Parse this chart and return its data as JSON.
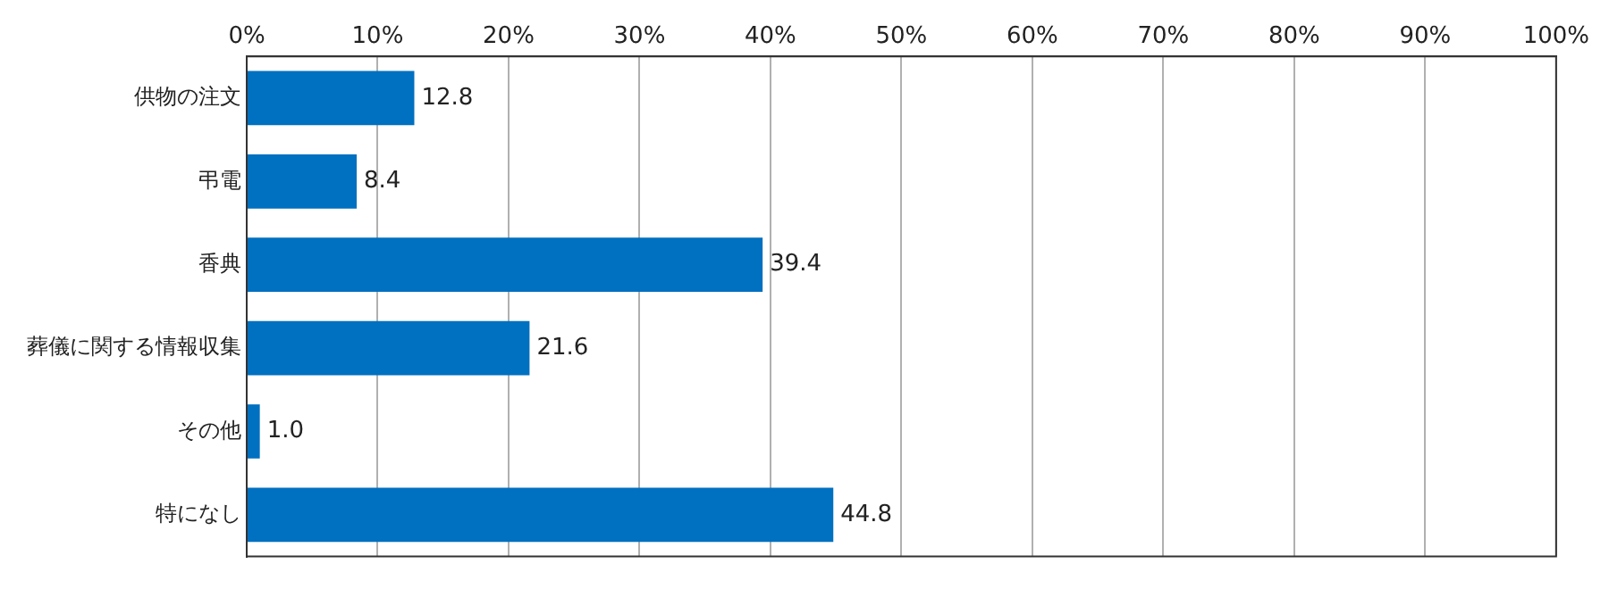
{
  "chart_data": {
    "type": "bar",
    "orientation": "horizontal",
    "categories": [
      "供物の注文",
      "弔電",
      "香典",
      "葬儀に関する情報収集",
      "その他",
      "特になし"
    ],
    "values": [
      12.8,
      8.4,
      39.4,
      21.6,
      1.0,
      44.8
    ],
    "value_labels": [
      "12.8",
      "8.4",
      "39.4",
      "21.6",
      "1.0",
      "44.8"
    ],
    "color": "#0070c0",
    "xlim": [
      0,
      100
    ],
    "xticks": [
      {
        "value": 0,
        "label": "0%"
      },
      {
        "value": 10,
        "label": "10%"
      },
      {
        "value": 20,
        "label": "20%"
      },
      {
        "value": 30,
        "label": "30%"
      },
      {
        "value": 40,
        "label": "40%"
      },
      {
        "value": 50,
        "label": "50%"
      },
      {
        "value": 60,
        "label": "60%"
      },
      {
        "value": 70,
        "label": "70%"
      },
      {
        "value": 80,
        "label": "80%"
      },
      {
        "value": 90,
        "label": "90%"
      },
      {
        "value": 100,
        "label": "100%"
      }
    ],
    "grid": "x"
  }
}
